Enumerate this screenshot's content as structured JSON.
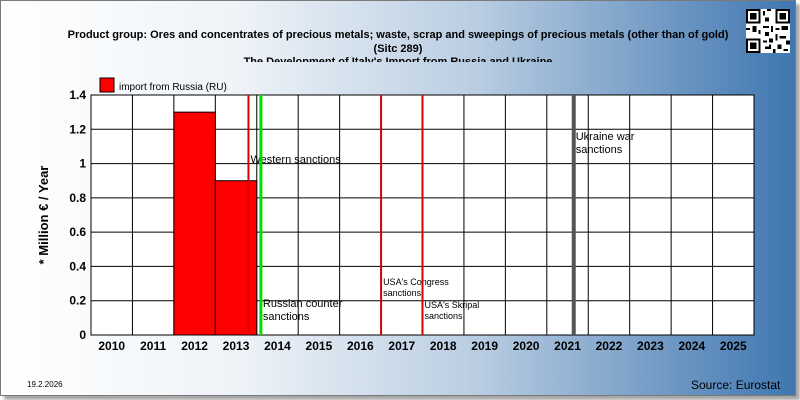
{
  "header": {
    "title_line1": "Product group: Ores and concentrates of precious metals; waste, scrap and sweepings of precious metals (other than of gold)",
    "title_line2": "(Sitc 289)",
    "title_line3": "The Development of Italy's Import from Russia and Ukraine"
  },
  "footer": {
    "date": "19.2.2026",
    "source": "Source: Eurostat"
  },
  "colors": {
    "bar_fill": "#ff0000",
    "sanction_red": "#d80000",
    "sanction_green": "#00dd00",
    "war_gray": "#555555"
  },
  "chart_data": {
    "type": "bar",
    "ylabel": "* Million € / Year",
    "ylim": [
      0,
      1.4
    ],
    "yticks": [
      "0",
      "0.2",
      "0.4",
      "0.6",
      "0.8",
      "1",
      "1.2",
      "1.4"
    ],
    "categories": [
      "2010",
      "2011",
      "2012",
      "2013",
      "2014",
      "2015",
      "2016",
      "2017",
      "2018",
      "2019",
      "2020",
      "2021",
      "2022",
      "2023",
      "2024",
      "2025"
    ],
    "series": [
      {
        "name": "import from Russia (RU)",
        "values": [
          0,
          0,
          1.3,
          0.9,
          0,
          0,
          0,
          0,
          0,
          0,
          0,
          0,
          0,
          0,
          0,
          0
        ]
      }
    ],
    "legend_position": "top-left",
    "grid": true,
    "annotations": [
      {
        "year_pos": 2013.8,
        "color": "red",
        "text_lines": [
          "Western sanctions"
        ]
      },
      {
        "year_pos": 2014.1,
        "color": "green",
        "text_lines": [
          "Russian counter",
          "sanctions"
        ]
      },
      {
        "year_pos": 2017.0,
        "color": "red",
        "text_lines": [
          "USA's Congress",
          "sanctions"
        ]
      },
      {
        "year_pos": 2018.0,
        "color": "red",
        "text_lines": [
          "USA's Skripal",
          "sanctions"
        ]
      },
      {
        "year_pos": 2021.65,
        "color": "gray",
        "text_lines": [
          "Ukraine war",
          "sanctions"
        ]
      }
    ]
  }
}
